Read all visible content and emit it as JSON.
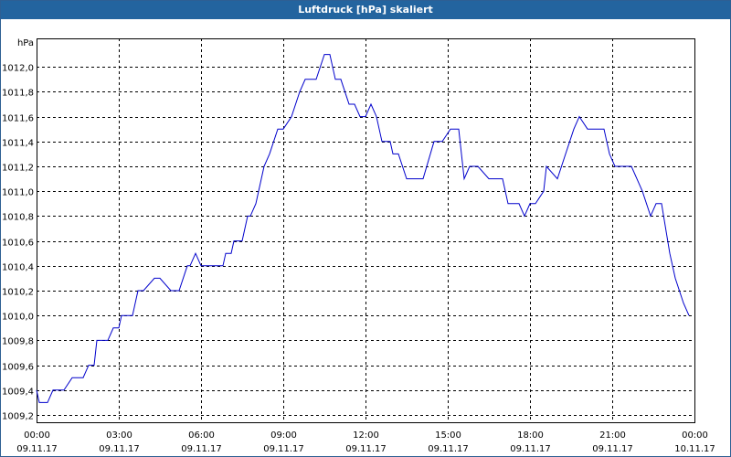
{
  "window": {
    "title": "Luftdruck [hPa] skaliert"
  },
  "colors": {
    "titlebar": "#23649f",
    "series": "#0000cc",
    "grid": "#000000"
  },
  "chart_data": {
    "type": "line",
    "title": "Luftdruck [hPa] skaliert",
    "ylabel": "hPa",
    "ylim": [
      1009.2,
      1012.2
    ],
    "xlim_hours": [
      0,
      24
    ],
    "grid": true,
    "y_ticks": [
      "1009,2",
      "1009,4",
      "1009,6",
      "1009,8",
      "1010,0",
      "1010,2",
      "1010,4",
      "1010,6",
      "1010,8",
      "1011,0",
      "1011,2",
      "1011,4",
      "1011,6",
      "1011,8",
      "1012,0"
    ],
    "x_ticks": [
      {
        "time": "00:00",
        "date": "09.11.17"
      },
      {
        "time": "03:00",
        "date": "09.11.17"
      },
      {
        "time": "06:00",
        "date": "09.11.17"
      },
      {
        "time": "09:00",
        "date": "09.11.17"
      },
      {
        "time": "12:00",
        "date": "09.11.17"
      },
      {
        "time": "15:00",
        "date": "09.11.17"
      },
      {
        "time": "18:00",
        "date": "09.11.17"
      },
      {
        "time": "21:00",
        "date": "09.11.17"
      },
      {
        "time": "00:00",
        "date": "10.11.17"
      }
    ],
    "series": [
      {
        "x": [
          0.0,
          0.1,
          0.4,
          0.6,
          1.0,
          1.3,
          1.7,
          1.9,
          2.1,
          2.2,
          2.6,
          2.8,
          3.0,
          3.1,
          3.5,
          3.7,
          3.9,
          4.3,
          4.5,
          4.9,
          5.2,
          5.5,
          5.6,
          5.8,
          6.0,
          6.3,
          6.8,
          6.9,
          7.1,
          7.2,
          7.5,
          7.7,
          7.8,
          8.0,
          8.2,
          8.3,
          8.5,
          8.8,
          9.0,
          9.3,
          9.6,
          9.8,
          10.2,
          10.5,
          10.7,
          10.9,
          11.1,
          11.4,
          11.6,
          11.8,
          12.0,
          12.2,
          12.4,
          12.6,
          12.9,
          13.0,
          13.2,
          13.5,
          14.1,
          14.5,
          14.8,
          15.1,
          15.4,
          15.6,
          15.8,
          16.1,
          16.5,
          17.0,
          17.2,
          17.4,
          17.6,
          17.8,
          18.0,
          18.2,
          18.5,
          18.6,
          19.0,
          19.3,
          19.6,
          19.8,
          20.1,
          20.4,
          20.7,
          20.9,
          21.1,
          21.4,
          21.7,
          21.9,
          22.1,
          22.4,
          22.6,
          22.8,
          23.1,
          23.3,
          23.6,
          23.8
        ],
        "y": [
          1009.4,
          1009.3,
          1009.3,
          1009.4,
          1009.4,
          1009.5,
          1009.5,
          1009.6,
          1009.6,
          1009.8,
          1009.8,
          1009.9,
          1009.9,
          1010.0,
          1010.0,
          1010.2,
          1010.2,
          1010.3,
          1010.3,
          1010.2,
          1010.2,
          1010.4,
          1010.4,
          1010.5,
          1010.4,
          1010.4,
          1010.4,
          1010.5,
          1010.5,
          1010.6,
          1010.6,
          1010.8,
          1010.8,
          1010.9,
          1011.1,
          1011.2,
          1011.3,
          1011.5,
          1011.5,
          1011.6,
          1011.8,
          1011.9,
          1011.9,
          1012.1,
          1012.1,
          1011.9,
          1011.9,
          1011.7,
          1011.7,
          1011.6,
          1011.6,
          1011.7,
          1011.6,
          1011.4,
          1011.4,
          1011.3,
          1011.3,
          1011.1,
          1011.1,
          1011.4,
          1011.4,
          1011.5,
          1011.5,
          1011.1,
          1011.2,
          1011.2,
          1011.1,
          1011.1,
          1010.9,
          1010.9,
          1010.9,
          1010.8,
          1010.9,
          1010.9,
          1011.0,
          1011.2,
          1011.1,
          1011.3,
          1011.5,
          1011.6,
          1011.5,
          1011.5,
          1011.5,
          1011.3,
          1011.2,
          1011.2,
          1011.2,
          1011.1,
          1011.0,
          1010.8,
          1010.9,
          1010.9,
          1010.5,
          1010.3,
          1010.1,
          1010.0
        ]
      }
    ]
  }
}
